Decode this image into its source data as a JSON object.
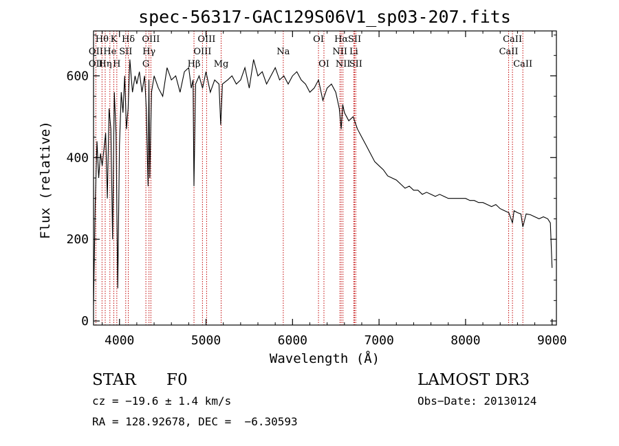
{
  "chart_data": {
    "type": "line",
    "title": "spec-56317-GAC129S06V1_sp03-207.fits",
    "xlabel": "Wavelength (Å)",
    "ylabel": "Flux (relative)",
    "xlim": [
      3700,
      9050
    ],
    "ylim": [
      -10,
      710
    ],
    "x_ticks": [
      4000,
      5000,
      6000,
      7000,
      8000,
      9000
    ],
    "y_ticks": [
      0,
      200,
      400,
      600
    ],
    "series": [
      {
        "name": "flux",
        "x": [
          3700,
          3720,
          3740,
          3760,
          3780,
          3800,
          3820,
          3840,
          3860,
          3880,
          3900,
          3920,
          3940,
          3960,
          3980,
          4000,
          4020,
          4040,
          4060,
          4080,
          4100,
          4120,
          4150,
          4180,
          4200,
          4230,
          4260,
          4290,
          4310,
          4330,
          4340,
          4350,
          4370,
          4400,
          4450,
          4500,
          4550,
          4600,
          4650,
          4700,
          4750,
          4800,
          4830,
          4850,
          4861,
          4880,
          4920,
          4960,
          5000,
          5050,
          5100,
          5150,
          5170,
          5190,
          5250,
          5300,
          5350,
          5400,
          5450,
          5500,
          5550,
          5600,
          5650,
          5700,
          5750,
          5800,
          5850,
          5900,
          5950,
          6000,
          6050,
          6100,
          6150,
          6200,
          6250,
          6300,
          6350,
          6400,
          6450,
          6500,
          6540,
          6563,
          6580,
          6600,
          6650,
          6700,
          6750,
          6800,
          6850,
          6900,
          6950,
          7000,
          7050,
          7100,
          7150,
          7200,
          7250,
          7300,
          7350,
          7400,
          7450,
          7500,
          7550,
          7600,
          7650,
          7700,
          7750,
          7800,
          7850,
          7900,
          7950,
          8000,
          8050,
          8100,
          8150,
          8200,
          8250,
          8300,
          8350,
          8400,
          8450,
          8500,
          8542,
          8560,
          8600,
          8640,
          8662,
          8700,
          8750,
          8800,
          8850,
          8900,
          8950,
          8980,
          9000
        ],
        "values": [
          40,
          290,
          440,
          350,
          410,
          380,
          420,
          460,
          300,
          520,
          470,
          200,
          560,
          460,
          80,
          430,
          560,
          510,
          600,
          470,
          520,
          640,
          560,
          600,
          580,
          610,
          560,
          600,
          520,
          330,
          590,
          350,
          560,
          600,
          570,
          550,
          620,
          590,
          600,
          560,
          610,
          620,
          570,
          590,
          330,
          580,
          600,
          570,
          610,
          560,
          590,
          580,
          480,
          580,
          590,
          600,
          580,
          590,
          620,
          570,
          640,
          600,
          610,
          580,
          600,
          620,
          590,
          600,
          580,
          600,
          610,
          590,
          580,
          560,
          570,
          590,
          540,
          570,
          580,
          560,
          520,
          470,
          530,
          510,
          490,
          500,
          470,
          450,
          430,
          410,
          390,
          380,
          370,
          355,
          350,
          345,
          335,
          325,
          330,
          320,
          320,
          310,
          315,
          310,
          305,
          310,
          305,
          300,
          300,
          300,
          300,
          300,
          295,
          295,
          290,
          290,
          285,
          280,
          285,
          275,
          270,
          265,
          240,
          270,
          265,
          262,
          230,
          262,
          260,
          255,
          250,
          255,
          250,
          240,
          130
        ]
      }
    ],
    "spectral_lines": [
      {
        "label": "Hθ",
        "wavelength": 3798,
        "row": 1
      },
      {
        "label": "OII",
        "wavelength": 3727,
        "row": 2
      },
      {
        "label": "OII",
        "wavelength": 3727,
        "row": 3
      },
      {
        "label": "He",
        "wavelength": 3889,
        "row": 2
      },
      {
        "label": "Hη",
        "wavelength": 3835,
        "row": 3
      },
      {
        "label": "K",
        "wavelength": 3934,
        "row": 1
      },
      {
        "label": "H",
        "wavelength": 3969,
        "row": 3
      },
      {
        "label": "SII",
        "wavelength": 4072,
        "row": 2
      },
      {
        "label": "Hδ",
        "wavelength": 4102,
        "row": 1
      },
      {
        "label": "OIII",
        "wavelength": 4363,
        "row": 1
      },
      {
        "label": "Hγ",
        "wavelength": 4341,
        "row": 2
      },
      {
        "label": "G",
        "wavelength": 4305,
        "row": 3
      },
      {
        "label": "Hβ",
        "wavelength": 4861,
        "row": 3
      },
      {
        "label": "OIII",
        "wavelength": 5007,
        "row": 1
      },
      {
        "label": "OIII",
        "wavelength": 4959,
        "row": 2
      },
      {
        "label": "Mg",
        "wavelength": 5175,
        "row": 3
      },
      {
        "label": "Na",
        "wavelength": 5893,
        "row": 2
      },
      {
        "label": "OI",
        "wavelength": 6300,
        "row": 1
      },
      {
        "label": "OI",
        "wavelength": 6363,
        "row": 3
      },
      {
        "label": "Hα",
        "wavelength": 6563,
        "row": 1
      },
      {
        "label": "NII",
        "wavelength": 6548,
        "row": 2
      },
      {
        "label": "NII",
        "wavelength": 6583,
        "row": 3
      },
      {
        "label": "SII",
        "wavelength": 6717,
        "row": 1
      },
      {
        "label": "Li",
        "wavelength": 6708,
        "row": 2
      },
      {
        "label": "SII",
        "wavelength": 6731,
        "row": 3
      },
      {
        "label": "CaII",
        "wavelength": 8542,
        "row": 1
      },
      {
        "label": "CaII",
        "wavelength": 8498,
        "row": 2
      },
      {
        "label": "CaII",
        "wavelength": 8662,
        "row": 3
      }
    ]
  },
  "info": {
    "class": "STAR",
    "subclass": "F0",
    "survey": "LAMOST DR3",
    "cz": "cz = −19.6 ± 1.4 km/s",
    "obs_date": "Obs−Date: 20130124",
    "coords": "RA = 128.92678, DEC =  −6.30593"
  },
  "colors": {
    "line_marker": "#c00000",
    "spectrum": "#000000"
  }
}
